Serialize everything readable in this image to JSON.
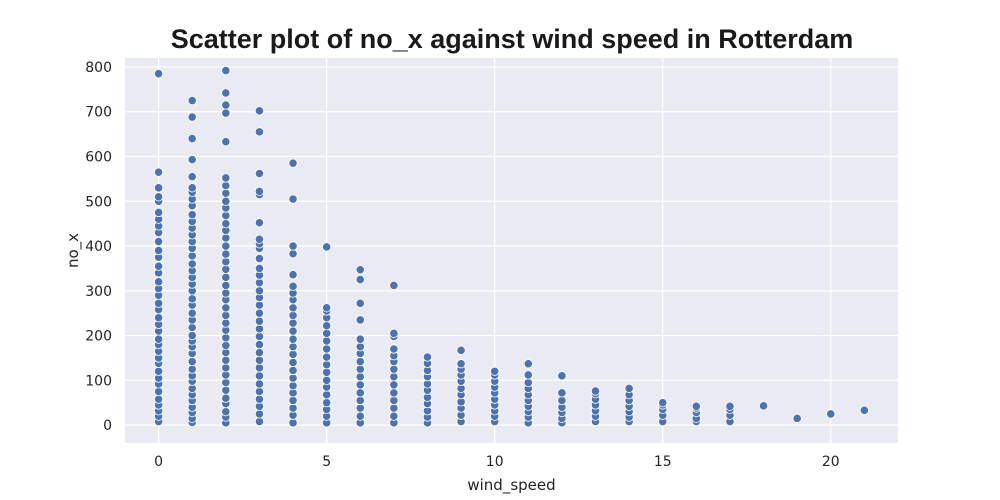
{
  "chart_data": {
    "type": "scatter",
    "title": "Scatter plot of no_x against wind speed in Rotterdam",
    "xlabel": "wind_speed",
    "ylabel": "no_x",
    "xlim": [
      -1.0,
      22.0
    ],
    "ylim": [
      -40,
      820
    ],
    "xticks": [
      0,
      5,
      10,
      15,
      20
    ],
    "yticks": [
      0,
      100,
      200,
      300,
      400,
      500,
      600,
      700,
      800
    ],
    "grid": true,
    "legend": "none",
    "colors": {
      "background": "#eaeaf2",
      "grid": "#ffffff",
      "marker": "#4c72b0",
      "marker_edge": "#ffffff"
    },
    "series": [
      {
        "points": [
          [
            0,
            8
          ],
          [
            0,
            20
          ],
          [
            0,
            32
          ],
          [
            0,
            45
          ],
          [
            0,
            58
          ],
          [
            0,
            75
          ],
          [
            0,
            92
          ],
          [
            0,
            105
          ],
          [
            0,
            120
          ],
          [
            0,
            138
          ],
          [
            0,
            150
          ],
          [
            0,
            165
          ],
          [
            0,
            180
          ],
          [
            0,
            192
          ],
          [
            0,
            210
          ],
          [
            0,
            225
          ],
          [
            0,
            240
          ],
          [
            0,
            258
          ],
          [
            0,
            272
          ],
          [
            0,
            290
          ],
          [
            0,
            305
          ],
          [
            0,
            320
          ],
          [
            0,
            340
          ],
          [
            0,
            355
          ],
          [
            0,
            375
          ],
          [
            0,
            390
          ],
          [
            0,
            410
          ],
          [
            0,
            430
          ],
          [
            0,
            445
          ],
          [
            0,
            460
          ],
          [
            0,
            475
          ],
          [
            0,
            500
          ],
          [
            0,
            510
          ],
          [
            0,
            530
          ],
          [
            0,
            565
          ],
          [
            0,
            785
          ],
          [
            1,
            6
          ],
          [
            1,
            15
          ],
          [
            1,
            28
          ],
          [
            1,
            40
          ],
          [
            1,
            55
          ],
          [
            1,
            68
          ],
          [
            1,
            82
          ],
          [
            1,
            98
          ],
          [
            1,
            110
          ],
          [
            1,
            125
          ],
          [
            1,
            142
          ],
          [
            1,
            160
          ],
          [
            1,
            175
          ],
          [
            1,
            188
          ],
          [
            1,
            200
          ],
          [
            1,
            218
          ],
          [
            1,
            235
          ],
          [
            1,
            250
          ],
          [
            1,
            268
          ],
          [
            1,
            282
          ],
          [
            1,
            300
          ],
          [
            1,
            315
          ],
          [
            1,
            330
          ],
          [
            1,
            345
          ],
          [
            1,
            360
          ],
          [
            1,
            378
          ],
          [
            1,
            395
          ],
          [
            1,
            410
          ],
          [
            1,
            425
          ],
          [
            1,
            440
          ],
          [
            1,
            455
          ],
          [
            1,
            470
          ],
          [
            1,
            490
          ],
          [
            1,
            505
          ],
          [
            1,
            520
          ],
          [
            1,
            530
          ],
          [
            1,
            555
          ],
          [
            1,
            593
          ],
          [
            1,
            640
          ],
          [
            1,
            688
          ],
          [
            1,
            725
          ],
          [
            2,
            5
          ],
          [
            2,
            18
          ],
          [
            2,
            30
          ],
          [
            2,
            48
          ],
          [
            2,
            60
          ],
          [
            2,
            78
          ],
          [
            2,
            95
          ],
          [
            2,
            112
          ],
          [
            2,
            128
          ],
          [
            2,
            145
          ],
          [
            2,
            162
          ],
          [
            2,
            178
          ],
          [
            2,
            195
          ],
          [
            2,
            212
          ],
          [
            2,
            228
          ],
          [
            2,
            245
          ],
          [
            2,
            262
          ],
          [
            2,
            280
          ],
          [
            2,
            295
          ],
          [
            2,
            312
          ],
          [
            2,
            330
          ],
          [
            2,
            348
          ],
          [
            2,
            365
          ],
          [
            2,
            382
          ],
          [
            2,
            400
          ],
          [
            2,
            418
          ],
          [
            2,
            435
          ],
          [
            2,
            450
          ],
          [
            2,
            468
          ],
          [
            2,
            485
          ],
          [
            2,
            500
          ],
          [
            2,
            518
          ],
          [
            2,
            535
          ],
          [
            2,
            552
          ],
          [
            2,
            633
          ],
          [
            2,
            697
          ],
          [
            2,
            715
          ],
          [
            2,
            742
          ],
          [
            2,
            792
          ],
          [
            3,
            8
          ],
          [
            3,
            25
          ],
          [
            3,
            42
          ],
          [
            3,
            58
          ],
          [
            3,
            75
          ],
          [
            3,
            92
          ],
          [
            3,
            110
          ],
          [
            3,
            128
          ],
          [
            3,
            145
          ],
          [
            3,
            162
          ],
          [
            3,
            180
          ],
          [
            3,
            198
          ],
          [
            3,
            215
          ],
          [
            3,
            232
          ],
          [
            3,
            250
          ],
          [
            3,
            268
          ],
          [
            3,
            285
          ],
          [
            3,
            300
          ],
          [
            3,
            318
          ],
          [
            3,
            335
          ],
          [
            3,
            350
          ],
          [
            3,
            372
          ],
          [
            3,
            395
          ],
          [
            3,
            405
          ],
          [
            3,
            415
          ],
          [
            3,
            452
          ],
          [
            3,
            515
          ],
          [
            3,
            522
          ],
          [
            3,
            562
          ],
          [
            3,
            655
          ],
          [
            3,
            702
          ],
          [
            4,
            5
          ],
          [
            4,
            22
          ],
          [
            4,
            38
          ],
          [
            4,
            55
          ],
          [
            4,
            72
          ],
          [
            4,
            88
          ],
          [
            4,
            105
          ],
          [
            4,
            122
          ],
          [
            4,
            140
          ],
          [
            4,
            158
          ],
          [
            4,
            175
          ],
          [
            4,
            192
          ],
          [
            4,
            210
          ],
          [
            4,
            228
          ],
          [
            4,
            245
          ],
          [
            4,
            262
          ],
          [
            4,
            280
          ],
          [
            4,
            295
          ],
          [
            4,
            310
          ],
          [
            4,
            336
          ],
          [
            4,
            383
          ],
          [
            4,
            400
          ],
          [
            4,
            505
          ],
          [
            4,
            585
          ],
          [
            5,
            5
          ],
          [
            5,
            20
          ],
          [
            5,
            35
          ],
          [
            5,
            50
          ],
          [
            5,
            68
          ],
          [
            5,
            85
          ],
          [
            5,
            100
          ],
          [
            5,
            118
          ],
          [
            5,
            135
          ],
          [
            5,
            152
          ],
          [
            5,
            170
          ],
          [
            5,
            188
          ],
          [
            5,
            205
          ],
          [
            5,
            222
          ],
          [
            5,
            240
          ],
          [
            5,
            255
          ],
          [
            5,
            262
          ],
          [
            5,
            398
          ],
          [
            6,
            5
          ],
          [
            6,
            20
          ],
          [
            6,
            38
          ],
          [
            6,
            55
          ],
          [
            6,
            72
          ],
          [
            6,
            90
          ],
          [
            6,
            108
          ],
          [
            6,
            125
          ],
          [
            6,
            142
          ],
          [
            6,
            160
          ],
          [
            6,
            175
          ],
          [
            6,
            192
          ],
          [
            6,
            235
          ],
          [
            6,
            272
          ],
          [
            6,
            325
          ],
          [
            6,
            347
          ],
          [
            7,
            5
          ],
          [
            7,
            20
          ],
          [
            7,
            38
          ],
          [
            7,
            55
          ],
          [
            7,
            72
          ],
          [
            7,
            90
          ],
          [
            7,
            108
          ],
          [
            7,
            125
          ],
          [
            7,
            142
          ],
          [
            7,
            155
          ],
          [
            7,
            170
          ],
          [
            7,
            198
          ],
          [
            7,
            205
          ],
          [
            7,
            312
          ],
          [
            8,
            5
          ],
          [
            8,
            18
          ],
          [
            8,
            32
          ],
          [
            8,
            48
          ],
          [
            8,
            62
          ],
          [
            8,
            78
          ],
          [
            8,
            92
          ],
          [
            8,
            108
          ],
          [
            8,
            122
          ],
          [
            8,
            138
          ],
          [
            8,
            152
          ],
          [
            9,
            8
          ],
          [
            9,
            22
          ],
          [
            9,
            38
          ],
          [
            9,
            52
          ],
          [
            9,
            68
          ],
          [
            9,
            82
          ],
          [
            9,
            98
          ],
          [
            9,
            112
          ],
          [
            9,
            125
          ],
          [
            9,
            137
          ],
          [
            9,
            167
          ],
          [
            10,
            8
          ],
          [
            10,
            20
          ],
          [
            10,
            32
          ],
          [
            10,
            45
          ],
          [
            10,
            58
          ],
          [
            10,
            72
          ],
          [
            10,
            85
          ],
          [
            10,
            98
          ],
          [
            10,
            112
          ],
          [
            10,
            120
          ],
          [
            11,
            5
          ],
          [
            11,
            18
          ],
          [
            11,
            30
          ],
          [
            11,
            42
          ],
          [
            11,
            55
          ],
          [
            11,
            68
          ],
          [
            11,
            82
          ],
          [
            11,
            95
          ],
          [
            11,
            112
          ],
          [
            11,
            137
          ],
          [
            12,
            5
          ],
          [
            12,
            15
          ],
          [
            12,
            28
          ],
          [
            12,
            40
          ],
          [
            12,
            55
          ],
          [
            12,
            72
          ],
          [
            12,
            110
          ],
          [
            13,
            8
          ],
          [
            13,
            20
          ],
          [
            13,
            32
          ],
          [
            13,
            45
          ],
          [
            13,
            58
          ],
          [
            13,
            70
          ],
          [
            13,
            76
          ],
          [
            14,
            8
          ],
          [
            14,
            18
          ],
          [
            14,
            30
          ],
          [
            14,
            42
          ],
          [
            14,
            55
          ],
          [
            14,
            68
          ],
          [
            14,
            82
          ],
          [
            15,
            8
          ],
          [
            15,
            22
          ],
          [
            15,
            35
          ],
          [
            15,
            45
          ],
          [
            15,
            50
          ],
          [
            16,
            8
          ],
          [
            16,
            15
          ],
          [
            16,
            28
          ],
          [
            16,
            38
          ],
          [
            16,
            42
          ],
          [
            17,
            8
          ],
          [
            17,
            22
          ],
          [
            17,
            35
          ],
          [
            17,
            42
          ],
          [
            18,
            43
          ],
          [
            19,
            15
          ],
          [
            20,
            25
          ],
          [
            21,
            33
          ]
        ]
      }
    ]
  }
}
